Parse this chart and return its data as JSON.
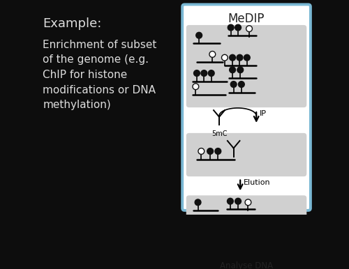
{
  "bg_color": "#0d0d0d",
  "text_color": "#dddddd",
  "title_text": "Example:",
  "body_text": "Enrichment of subset\nof the genome (e.g.\nChIP for histone\nmodifications or DNA\nmethylation)",
  "medip_title": "MeDIP",
  "label_5mc": "5mC",
  "label_ip": "IP",
  "label_elution": "Elution",
  "label_analyse": "Analyse DNA",
  "panel_border": "#7ab8d4",
  "panel_bg": "#ffffff",
  "box_bg": "#d8d8d8",
  "title_fontsize": 13,
  "body_fontsize": 11
}
